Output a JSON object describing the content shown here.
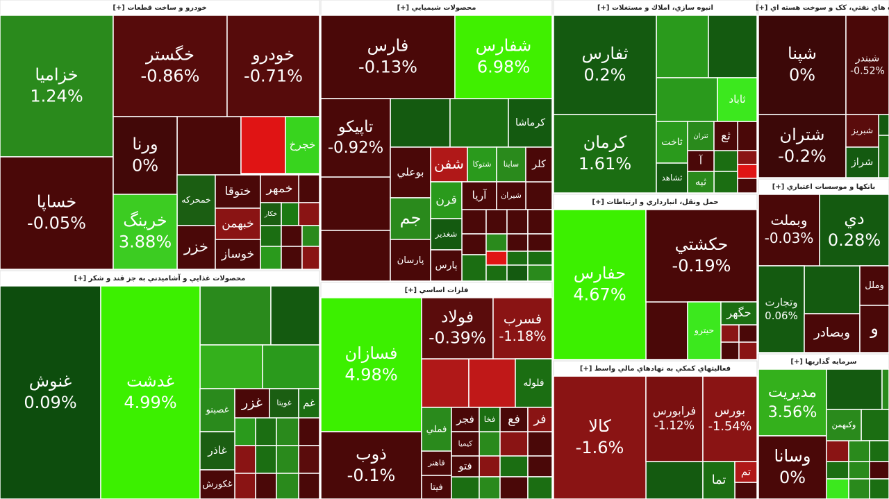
{
  "sectors": [
    {
      "title": "خودرو و ساخت قطعات [+]",
      "tiles": [
        {
          "name": "خزاميا",
          "change": "1.24%"
        },
        {
          "name": "خساپا",
          "change": "-0.05%"
        },
        {
          "name": "خگستر",
          "change": "-0.86%"
        },
        {
          "name": "خودرو",
          "change": "-0.71%"
        },
        {
          "name": "ورنا",
          "change": "0%"
        },
        {
          "name": "خمحركه"
        },
        {
          "name": "ختوقا"
        },
        {
          "name": "خمهر"
        },
        {
          "name": "خبهمن"
        },
        {
          "name": "خزر"
        },
        {
          "name": "خوساز"
        },
        {
          "name": "خكار"
        },
        {
          "name": "خرينگ",
          "change": "3.88%"
        },
        {
          "name": "خچرخ"
        }
      ]
    },
    {
      "title": "محصولات غذايي و آشاميدني به جز قند و شكر [+]",
      "tiles": [
        {
          "name": "غنوش",
          "change": "0.09%"
        },
        {
          "name": "غدشت",
          "change": "4.99%"
        },
        {
          "name": "غصينو"
        },
        {
          "name": "غزر"
        },
        {
          "name": "غويتا"
        },
        {
          "name": "غم"
        },
        {
          "name": "غاذر"
        },
        {
          "name": "غكورش"
        }
      ]
    },
    {
      "title": "محصولات شيميايي [+]",
      "tiles": [
        {
          "name": "فارس",
          "change": "-0.13%"
        },
        {
          "name": "شفارس",
          "change": "6.98%"
        },
        {
          "name": "تاپيكو",
          "change": "-0.92%"
        },
        {
          "name": "كرماشا"
        },
        {
          "name": "بوعلي"
        },
        {
          "name": "شفن"
        },
        {
          "name": "شتوكا"
        },
        {
          "name": "ساينا"
        },
        {
          "name": "كلر"
        },
        {
          "name": "جم"
        },
        {
          "name": "قرن"
        },
        {
          "name": "آريا"
        },
        {
          "name": "شيران"
        },
        {
          "name": "پارسان"
        },
        {
          "name": "شغدير"
        },
        {
          "name": "پارس"
        }
      ]
    },
    {
      "title": "فلزات اساسي [+]",
      "tiles": [
        {
          "name": "فسازان",
          "change": "4.98%"
        },
        {
          "name": "ذوب",
          "change": "-0.1%"
        },
        {
          "name": "فولاد",
          "change": "-0.39%"
        },
        {
          "name": "فسرب",
          "change": "-1.18%"
        },
        {
          "name": "فلوله"
        },
        {
          "name": "فملي"
        },
        {
          "name": "فجر"
        },
        {
          "name": "كيميا"
        },
        {
          "name": "فاهنر"
        },
        {
          "name": "فيتا"
        },
        {
          "name": "فخا"
        },
        {
          "name": "فع"
        },
        {
          "name": "فر"
        },
        {
          "name": "فتو"
        }
      ]
    },
    {
      "title": "انبوه سازي، املاك و مستغلات [+]",
      "tiles": [
        {
          "name": "ثفارس",
          "change": "0.2%"
        },
        {
          "name": "كرمان",
          "change": "1.61%"
        },
        {
          "name": "ثاباد"
        },
        {
          "name": "ثاخت"
        },
        {
          "name": "ثتران"
        },
        {
          "name": "ثع"
        },
        {
          "name": "ثشاهد"
        },
        {
          "name": "آ"
        },
        {
          "name": "ثبه"
        }
      ]
    },
    {
      "title": "حمل ونقل، انبارداري و ارتباطات [+]",
      "tiles": [
        {
          "name": "حفارس",
          "change": "4.67%"
        },
        {
          "name": "حكشتي",
          "change": "-0.19%"
        },
        {
          "name": "حيترو"
        },
        {
          "name": "حگهر"
        }
      ]
    },
    {
      "title": "فعاليتهاي كمكي به نهادهاي مالي واسط [+]",
      "tiles": [
        {
          "name": "كالا",
          "change": "-1.6%"
        },
        {
          "name": "فرابورس",
          "change": "-1.12%"
        },
        {
          "name": "بورس",
          "change": "-1.54%"
        },
        {
          "name": "تما"
        },
        {
          "name": "تم"
        }
      ]
    },
    {
      "title": "ه هاي نفتي، كک و سوخت هسته اي [+]",
      "tiles": [
        {
          "name": "شپنا",
          "change": "0%"
        },
        {
          "name": "شبندر",
          "change": "-0.52%"
        },
        {
          "name": "شتران",
          "change": "-0.2%"
        },
        {
          "name": "شبريز"
        },
        {
          "name": "شراز"
        }
      ]
    },
    {
      "title": "بانكها و موسسات اعتباري [+]",
      "tiles": [
        {
          "name": "وبملت",
          "change": "-0.03%"
        },
        {
          "name": "دي",
          "change": "0.28%"
        },
        {
          "name": "وتجارت",
          "change": "0.06%"
        },
        {
          "name": "وملل"
        },
        {
          "name": "وبصادر"
        },
        {
          "name": "و"
        }
      ]
    },
    {
      "title": "سرمايه گذاريها [+]",
      "tiles": [
        {
          "name": "مديريت",
          "change": "3.56%"
        },
        {
          "name": "وسانا",
          "change": "0%"
        },
        {
          "name": "وكبهمن"
        }
      ]
    }
  ]
}
